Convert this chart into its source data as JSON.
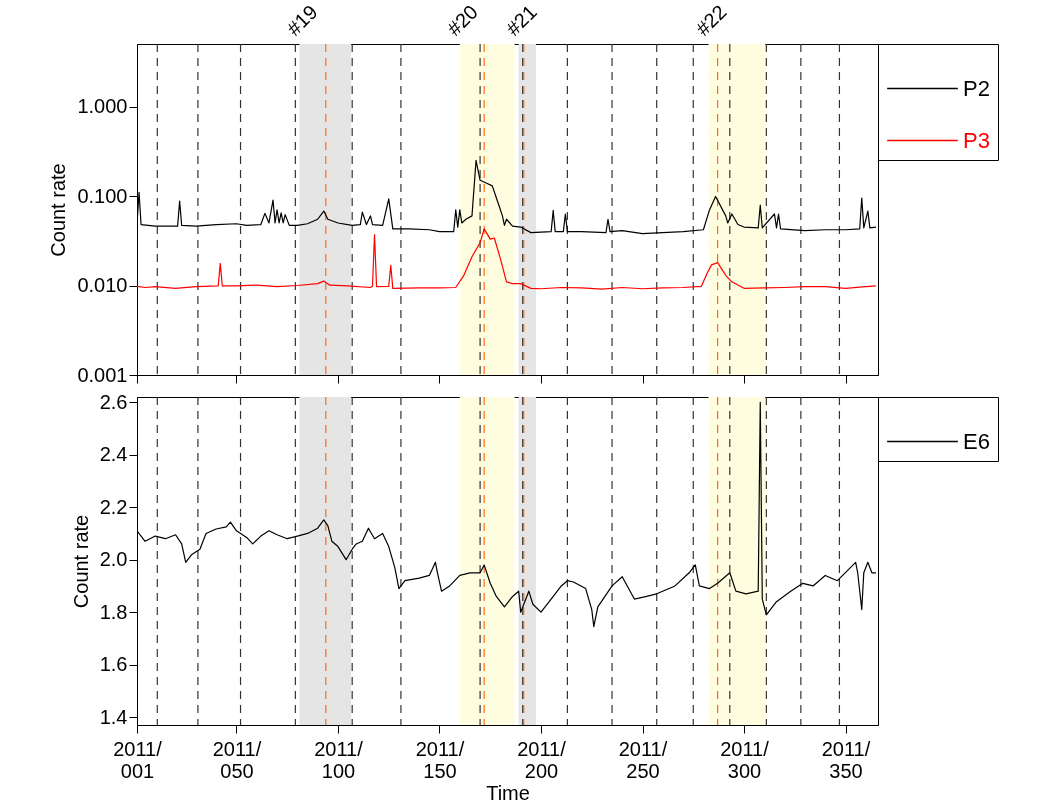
{
  "chart_data": [
    {
      "type": "line",
      "ylabel": "Count rate",
      "log": true,
      "legend": "right",
      "tick_labels": "y",
      "xlim": [
        "2011-01-01",
        "2012-01-01"
      ],
      "xticks": [
        {
          "value": "2011-01-01",
          "label": null
        },
        {
          "value": "2011-02-19",
          "label": null
        },
        {
          "value": "2011-04-10",
          "label": null
        },
        {
          "value": "2011-05-30",
          "label": null
        },
        {
          "value": "2011-07-19",
          "label": null
        },
        {
          "value": "2011-09-07",
          "label": null
        },
        {
          "value": "2011-10-27",
          "label": null
        },
        {
          "value": "2011-12-16",
          "label": null
        }
      ],
      "ylim": [
        0.001,
        5
      ],
      "yticks": [
        {
          "value": 0.001,
          "label": "0.001"
        },
        {
          "value": 0.01,
          "label": "0.010"
        },
        {
          "value": 0.1,
          "label": "0.100"
        },
        {
          "value": 1,
          "label": "1.000"
        }
      ],
      "series": [
        {
          "name": "P2",
          "color": "#000000",
          "x": [
            "2011-01-01",
            "2011-01-02",
            "2011-01-03",
            "2011-01-10",
            "2011-01-21",
            "2011-01-22",
            "2011-01-23",
            "2011-01-30",
            "2011-02-09",
            "2011-02-19",
            "2011-02-24",
            "2011-03-03",
            "2011-03-05",
            "2011-03-07",
            "2011-03-09",
            "2011-03-10",
            "2011-03-11",
            "2011-03-12",
            "2011-03-13",
            "2011-03-14",
            "2011-03-15",
            "2011-03-17",
            "2011-03-21",
            "2011-03-26",
            "2011-03-31",
            "2011-04-03",
            "2011-04-05",
            "2011-04-10",
            "2011-04-17",
            "2011-04-21",
            "2011-04-22",
            "2011-04-24",
            "2011-04-26",
            "2011-04-27",
            "2011-05-02",
            "2011-05-05",
            "2011-05-07",
            "2011-05-15",
            "2011-05-25",
            "2011-05-30",
            "2011-06-06",
            "2011-06-07",
            "2011-06-08",
            "2011-06-09",
            "2011-06-10",
            "2011-06-12",
            "2011-06-15",
            "2011-06-17",
            "2011-06-19",
            "2011-06-22",
            "2011-06-25",
            "2011-06-28",
            "2011-06-30",
            "2011-07-01",
            "2011-07-02",
            "2011-07-05",
            "2011-07-09",
            "2011-07-14",
            "2011-07-24",
            "2011-07-25",
            "2011-07-26",
            "2011-07-30",
            "2011-07-31",
            "2011-08-01",
            "2011-08-08",
            "2011-08-20",
            "2011-08-21",
            "2011-08-22",
            "2011-08-28",
            "2011-09-07",
            "2011-09-17",
            "2011-09-27",
            "2011-10-07",
            "2011-10-10",
            "2011-10-13",
            "2011-10-18",
            "2011-10-19",
            "2011-10-21",
            "2011-10-24",
            "2011-10-27",
            "2011-11-03",
            "2011-11-04",
            "2011-11-05",
            "2011-11-11",
            "2011-11-12",
            "2011-11-13",
            "2011-11-14",
            "2011-11-26",
            "2011-12-06",
            "2011-12-16",
            "2011-12-23",
            "2011-12-24",
            "2011-12-25",
            "2011-12-27",
            "2011-12-28",
            "2011-12-31"
          ],
          "values": [
            0.048,
            0.11,
            0.048,
            0.046,
            0.046,
            0.088,
            0.047,
            0.046,
            0.048,
            0.049,
            0.047,
            0.048,
            0.064,
            0.05,
            0.09,
            0.05,
            0.07,
            0.05,
            0.065,
            0.05,
            0.062,
            0.047,
            0.047,
            0.049,
            0.055,
            0.068,
            0.055,
            0.05,
            0.047,
            0.048,
            0.066,
            0.048,
            0.06,
            0.048,
            0.047,
            0.093,
            0.043,
            0.043,
            0.042,
            0.04,
            0.04,
            0.07,
            0.045,
            0.07,
            0.05,
            0.055,
            0.06,
            0.25,
            0.15,
            0.14,
            0.13,
            0.082,
            0.06,
            0.047,
            0.055,
            0.046,
            0.045,
            0.039,
            0.04,
            0.069,
            0.04,
            0.04,
            0.063,
            0.04,
            0.04,
            0.039,
            0.055,
            0.04,
            0.041,
            0.038,
            0.039,
            0.04,
            0.042,
            0.07,
            0.099,
            0.06,
            0.05,
            0.063,
            0.048,
            0.045,
            0.044,
            0.079,
            0.044,
            0.063,
            0.044,
            0.063,
            0.043,
            0.041,
            0.042,
            0.042,
            0.043,
            0.095,
            0.044,
            0.068,
            0.044,
            0.045
          ]
        },
        {
          "name": "P3",
          "color": "#ff0000",
          "x": [
            "2011-01-01",
            "2011-01-05",
            "2011-01-10",
            "2011-01-20",
            "2011-01-30",
            "2011-02-10",
            "2011-02-11",
            "2011-02-12",
            "2011-02-19",
            "2011-03-01",
            "2011-03-11",
            "2011-03-21",
            "2011-03-31",
            "2011-04-03",
            "2011-04-06",
            "2011-04-15",
            "2011-04-26",
            "2011-04-27",
            "2011-04-28",
            "2011-04-29",
            "2011-05-05",
            "2011-05-06",
            "2011-05-07",
            "2011-05-20",
            "2011-05-30",
            "2011-06-07",
            "2011-06-11",
            "2011-06-15",
            "2011-06-19",
            "2011-06-21",
            "2011-06-24",
            "2011-06-26",
            "2011-06-29",
            "2011-07-02",
            "2011-07-05",
            "2011-07-09",
            "2011-07-14",
            "2011-07-19",
            "2011-07-29",
            "2011-08-08",
            "2011-08-18",
            "2011-08-28",
            "2011-09-07",
            "2011-09-17",
            "2011-09-27",
            "2011-10-06",
            "2011-10-09",
            "2011-10-11",
            "2011-10-14",
            "2011-10-18",
            "2011-10-21",
            "2011-10-27",
            "2011-11-06",
            "2011-11-16",
            "2011-11-26",
            "2011-12-06",
            "2011-12-16",
            "2011-12-26",
            "2011-12-31"
          ],
          "values": [
            0.0098,
            0.0095,
            0.0097,
            0.0093,
            0.0097,
            0.0099,
            0.0177,
            0.0099,
            0.0099,
            0.0101,
            0.0097,
            0.01,
            0.0105,
            0.0112,
            0.0101,
            0.0099,
            0.0095,
            0.0098,
            0.037,
            0.0097,
            0.0098,
            0.0168,
            0.0093,
            0.0094,
            0.0094,
            0.0095,
            0.013,
            0.021,
            0.03,
            0.043,
            0.033,
            0.034,
            0.02,
            0.011,
            0.0105,
            0.0105,
            0.0093,
            0.0092,
            0.0095,
            0.0094,
            0.0091,
            0.0095,
            0.0092,
            0.0094,
            0.0095,
            0.0098,
            0.014,
            0.017,
            0.018,
            0.013,
            0.011,
            0.0093,
            0.0094,
            0.0095,
            0.0097,
            0.0097,
            0.0093,
            0.0097,
            0.0099
          ]
        }
      ],
      "ref_lines": [
        {
          "axis": "x",
          "value": "2011-01-11",
          "color": "#333333",
          "line_style": "dashed"
        },
        {
          "axis": "x",
          "value": "2011-01-31",
          "color": "#333333",
          "line_style": "dashed"
        },
        {
          "axis": "x",
          "value": "2011-02-21",
          "color": "#333333",
          "line_style": "dashed"
        },
        {
          "axis": "x",
          "value": "2011-03-20",
          "color": "#333333",
          "line_style": "dashed"
        },
        {
          "axis": "x",
          "value": "2011-04-17",
          "color": "#333333",
          "line_style": "dashed"
        },
        {
          "axis": "x",
          "value": "2011-05-11",
          "color": "#333333",
          "line_style": "dashed"
        },
        {
          "axis": "x",
          "value": "2011-06-19",
          "color": "#333333",
          "line_style": "dashed"
        },
        {
          "axis": "x",
          "value": "2011-07-10",
          "color": "#333333",
          "line_style": "dashed"
        },
        {
          "axis": "x",
          "value": "2011-08-01",
          "color": "#333333",
          "line_style": "dashed"
        },
        {
          "axis": "x",
          "value": "2011-08-23",
          "color": "#333333",
          "line_style": "dashed"
        },
        {
          "axis": "x",
          "value": "2011-09-14",
          "color": "#333333",
          "line_style": "dashed"
        },
        {
          "axis": "x",
          "value": "2011-10-02",
          "color": "#333333",
          "line_style": "dashed"
        },
        {
          "axis": "x",
          "value": "2011-10-20",
          "color": "#333333",
          "line_style": "dashed"
        },
        {
          "axis": "x",
          "value": "2011-11-07",
          "color": "#333333",
          "line_style": "dashed"
        },
        {
          "axis": "x",
          "value": "2011-11-24",
          "color": "#333333",
          "line_style": "dashed"
        },
        {
          "axis": "x",
          "value": "2011-12-13",
          "color": "#333333",
          "line_style": "dashed"
        },
        {
          "axis": "x",
          "value": "2011-04-04",
          "color": "#ff6a13",
          "line_style": "dashed"
        },
        {
          "axis": "x",
          "value": "2011-06-21",
          "color": "#ff6a13",
          "line_style": "dashed"
        },
        {
          "axis": "x",
          "value": "2011-07-10T12:00",
          "color": "#ff6a13",
          "line_style": "dashed"
        },
        {
          "axis": "x",
          "value": "2011-10-14",
          "color": "#ff6a13",
          "line_style": "dashed"
        }
      ],
      "bands": [
        {
          "axis": "x",
          "from": "2011-03-22",
          "to": "2011-04-16T12:00",
          "label": "#19",
          "color": "#e5e5e5"
        },
        {
          "axis": "x",
          "from": "2011-06-09",
          "to": "2011-07-06",
          "label": "#20",
          "color": "#fffde0"
        },
        {
          "axis": "x",
          "from": "2011-07-08",
          "to": "2011-07-16T12:00",
          "label": "#21",
          "color": "#e5e5e5"
        },
        {
          "axis": "x",
          "from": "2011-10-09T12:00",
          "to": "2011-11-06T12:00",
          "label": "#22",
          "color": "#fffde0"
        }
      ]
    },
    {
      "type": "line",
      "xlabel": "Time",
      "ylabel": "Count rate",
      "legend": "right",
      "xlim": [
        "2011-01-01",
        "2012-01-01"
      ],
      "xticks": [
        {
          "value": "2011-01-01",
          "label": "2011/\n001"
        },
        {
          "value": "2011-02-19",
          "label": "2011/\n050"
        },
        {
          "value": "2011-04-10",
          "label": "2011/\n100"
        },
        {
          "value": "2011-05-30",
          "label": "2011/\n150"
        },
        {
          "value": "2011-07-19",
          "label": "2011/\n200"
        },
        {
          "value": "2011-09-07",
          "label": "2011/\n250"
        },
        {
          "value": "2011-10-27",
          "label": "2011/\n300"
        },
        {
          "value": "2011-12-16",
          "label": "2011/\n350"
        }
      ],
      "ylim": [
        1.37,
        2.62
      ],
      "yticks": [
        1.4,
        1.6,
        1.8,
        {
          "value": 2,
          "label": "2.0"
        },
        2.2,
        2.4,
        2.6
      ],
      "series": [
        {
          "name": "E6",
          "color": "#000000",
          "x": [
            "2011-01-01",
            "2011-01-05",
            "2011-01-10",
            "2011-01-15",
            "2011-01-20",
            "2011-01-23",
            "2011-01-25",
            "2011-01-28",
            "2011-02-01",
            "2011-02-04",
            "2011-02-09",
            "2011-02-14",
            "2011-02-16",
            "2011-02-19",
            "2011-02-24",
            "2011-02-27",
            "2011-03-03",
            "2011-03-07",
            "2011-03-11",
            "2011-03-16",
            "2011-03-21",
            "2011-03-26",
            "2011-03-31",
            "2011-04-03",
            "2011-04-05",
            "2011-04-07",
            "2011-04-10",
            "2011-04-14",
            "2011-04-17",
            "2011-04-19",
            "2011-04-22",
            "2011-04-25",
            "2011-04-28",
            "2011-05-02",
            "2011-05-05",
            "2011-05-08",
            "2011-05-10",
            "2011-05-13",
            "2011-05-20",
            "2011-05-25",
            "2011-05-28",
            "2011-05-29",
            "2011-05-31",
            "2011-06-04",
            "2011-06-09",
            "2011-06-14",
            "2011-06-19",
            "2011-06-21",
            "2011-06-24",
            "2011-06-27",
            "2011-07-01",
            "2011-07-05",
            "2011-07-08",
            "2011-07-09",
            "2011-07-13",
            "2011-07-15",
            "2011-07-19",
            "2011-07-24",
            "2011-07-29",
            "2011-08-01",
            "2011-08-04",
            "2011-08-10",
            "2011-08-13",
            "2011-08-14",
            "2011-08-16",
            "2011-08-23",
            "2011-08-28",
            "2011-09-03",
            "2011-09-09",
            "2011-09-14",
            "2011-09-23",
            "2011-09-30",
            "2011-10-03",
            "2011-10-05",
            "2011-10-10",
            "2011-10-14",
            "2011-10-20",
            "2011-10-23",
            "2011-10-28",
            "2011-11-03",
            "2011-11-04",
            "2011-11-05",
            "2011-11-07",
            "2011-11-12",
            "2011-11-19",
            "2011-11-25",
            "2011-11-30",
            "2011-12-06",
            "2011-12-12",
            "2011-12-21",
            "2011-12-22",
            "2011-12-24",
            "2011-12-25",
            "2011-12-27",
            "2011-12-29",
            "2011-12-31"
          ],
          "values": [
            2.11,
            2.07,
            2.09,
            2.08,
            2.095,
            2.06,
            1.99,
            2.02,
            2.04,
            2.1,
            2.117,
            2.125,
            2.143,
            2.11,
            2.085,
            2.06,
            2.09,
            2.11,
            2.095,
            2.08,
            2.09,
            2.1,
            2.12,
            2.152,
            2.13,
            2.07,
            2.05,
            2.0,
            2.04,
            2.06,
            2.07,
            2.12,
            2.08,
            2.1,
            2.05,
            1.97,
            1.89,
            1.92,
            1.93,
            1.94,
            1.99,
            1.95,
            1.88,
            1.9,
            1.94,
            1.95,
            1.95,
            1.98,
            1.91,
            1.86,
            1.82,
            1.86,
            1.88,
            1.8,
            1.88,
            1.83,
            1.8,
            1.85,
            1.9,
            1.92,
            1.915,
            1.89,
            1.81,
            1.745,
            1.82,
            1.9,
            1.935,
            1.85,
            1.86,
            1.87,
            1.9,
            1.95,
            1.98,
            1.9,
            1.89,
            1.91,
            1.95,
            1.88,
            1.87,
            1.88,
            2.6,
            1.85,
            1.79,
            1.84,
            1.88,
            1.91,
            1.9,
            1.94,
            1.92,
            1.99,
            1.95,
            1.81,
            1.95,
            1.99,
            1.95,
            1.95
          ]
        }
      ],
      "ref_lines": [
        {
          "axis": "x",
          "value": "2011-01-11",
          "color": "#333333",
          "line_style": "dashed"
        },
        {
          "axis": "x",
          "value": "2011-01-31",
          "color": "#333333",
          "line_style": "dashed"
        },
        {
          "axis": "x",
          "value": "2011-02-21",
          "color": "#333333",
          "line_style": "dashed"
        },
        {
          "axis": "x",
          "value": "2011-03-20",
          "color": "#333333",
          "line_style": "dashed"
        },
        {
          "axis": "x",
          "value": "2011-04-17",
          "color": "#333333",
          "line_style": "dashed"
        },
        {
          "axis": "x",
          "value": "2011-05-11",
          "color": "#333333",
          "line_style": "dashed"
        },
        {
          "axis": "x",
          "value": "2011-06-19",
          "color": "#333333",
          "line_style": "dashed"
        },
        {
          "axis": "x",
          "value": "2011-07-10",
          "color": "#333333",
          "line_style": "dashed"
        },
        {
          "axis": "x",
          "value": "2011-08-01",
          "color": "#333333",
          "line_style": "dashed"
        },
        {
          "axis": "x",
          "value": "2011-08-23",
          "color": "#333333",
          "line_style": "dashed"
        },
        {
          "axis": "x",
          "value": "2011-09-14",
          "color": "#333333",
          "line_style": "dashed"
        },
        {
          "axis": "x",
          "value": "2011-10-02",
          "color": "#333333",
          "line_style": "dashed"
        },
        {
          "axis": "x",
          "value": "2011-10-20",
          "color": "#333333",
          "line_style": "dashed"
        },
        {
          "axis": "x",
          "value": "2011-11-07",
          "color": "#333333",
          "line_style": "dashed"
        },
        {
          "axis": "x",
          "value": "2011-11-24",
          "color": "#333333",
          "line_style": "dashed"
        },
        {
          "axis": "x",
          "value": "2011-12-13",
          "color": "#333333",
          "line_style": "dashed"
        },
        {
          "axis": "x",
          "value": "2011-04-04",
          "color": "#ff6a13",
          "line_style": "dashed"
        },
        {
          "axis": "x",
          "value": "2011-06-21",
          "color": "#ff6a13",
          "line_style": "dashed"
        },
        {
          "axis": "x",
          "value": "2011-07-10T12:00",
          "color": "#ff6a13",
          "line_style": "dashed"
        },
        {
          "axis": "x",
          "value": "2011-10-14",
          "color": "#ff6a13",
          "line_style": "dashed"
        }
      ],
      "bands": [
        {
          "axis": "x",
          "from": "2011-03-22",
          "to": "2011-04-16T12:00",
          "color": "#e5e5e5"
        },
        {
          "axis": "x",
          "from": "2011-06-09",
          "to": "2011-07-06",
          "color": "#fffde0"
        },
        {
          "axis": "x",
          "from": "2011-07-08",
          "to": "2011-07-16T12:00",
          "color": "#e5e5e5"
        },
        {
          "axis": "x",
          "from": "2011-10-09T12:00",
          "to": "2011-11-06T12:00",
          "color": "#fffde0"
        }
      ]
    }
  ]
}
